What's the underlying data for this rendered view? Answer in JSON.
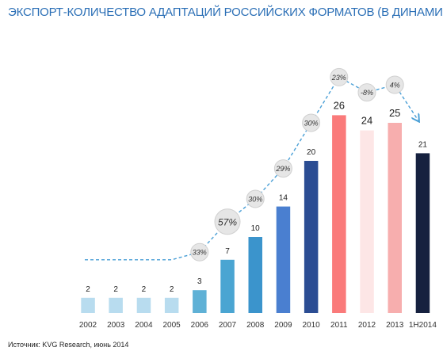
{
  "title": "ЭКСПОРТ-КОЛИЧЕСТВО АДАПТАЦИЙ РОССИЙСКИХ ФОРМАТОВ (В ДИНАМИКЕ)",
  "source": "Источник: KVG Research, июнь 2014",
  "chart_data": {
    "type": "bar",
    "title": "ЭКСПОРТ-КОЛИЧЕСТВО АДАПТАЦИЙ РОССИЙСКИХ ФОРМАТОВ (В ДИНАМИКЕ)",
    "categories": [
      "2002",
      "2003",
      "2004",
      "2005",
      "2006",
      "2007",
      "2008",
      "2009",
      "2010",
      "2011",
      "2012",
      "2013",
      "1H2014"
    ],
    "values": [
      2,
      2,
      2,
      2,
      3,
      7,
      10,
      14,
      20,
      26,
      24,
      25,
      21
    ],
    "bar_colors": [
      "#b8dcef",
      "#b8dcef",
      "#b8dcef",
      "#b8dcef",
      "#5fb1d6",
      "#4aa5d2",
      "#3b94cc",
      "#4a7fd0",
      "#2b4d93",
      "#fa7a7a",
      "#fde6e6",
      "#f7aeae",
      "#16213f"
    ],
    "growth_labels": [
      "",
      "",
      "",
      "",
      "33%",
      "57%",
      "30%",
      "29%",
      "30%",
      "23%",
      "-8%",
      "4%",
      ""
    ],
    "trend_line": {
      "style": "dashed",
      "color": "#4a9fd6"
    },
    "xlabel": "",
    "ylabel": "",
    "ylim": [
      0,
      30
    ],
    "grid": false,
    "legend": "none"
  }
}
